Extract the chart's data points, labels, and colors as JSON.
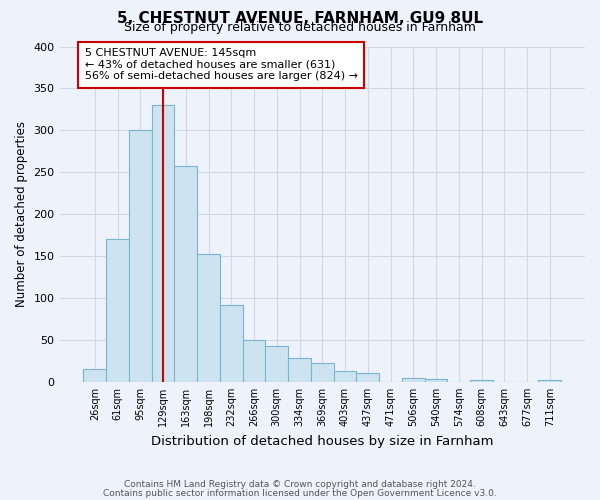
{
  "title": "5, CHESTNUT AVENUE, FARNHAM, GU9 8UL",
  "subtitle": "Size of property relative to detached houses in Farnham",
  "xlabel": "Distribution of detached houses by size in Farnham",
  "ylabel": "Number of detached properties",
  "bar_labels": [
    "26sqm",
    "61sqm",
    "95sqm",
    "129sqm",
    "163sqm",
    "198sqm",
    "232sqm",
    "266sqm",
    "300sqm",
    "334sqm",
    "369sqm",
    "403sqm",
    "437sqm",
    "471sqm",
    "506sqm",
    "540sqm",
    "574sqm",
    "608sqm",
    "643sqm",
    "677sqm",
    "711sqm"
  ],
  "bar_values": [
    15,
    170,
    300,
    330,
    258,
    152,
    92,
    50,
    43,
    29,
    23,
    13,
    11,
    0,
    5,
    3,
    0,
    2,
    0,
    0,
    2
  ],
  "bar_color": "#cde4f0",
  "bar_edge_color": "#7ab4d0",
  "vline_x": 3,
  "vline_color": "#cc0000",
  "annotation_title": "5 CHESTNUT AVENUE: 145sqm",
  "annotation_line1": "← 43% of detached houses are smaller (631)",
  "annotation_line2": "56% of semi-detached houses are larger (824) →",
  "annotation_box_color": "#ffffff",
  "annotation_box_edge": "#cc0000",
  "ylim": [
    0,
    400
  ],
  "yticks": [
    0,
    50,
    100,
    150,
    200,
    250,
    300,
    350,
    400
  ],
  "footnote1": "Contains HM Land Registry data © Crown copyright and database right 2024.",
  "footnote2": "Contains public sector information licensed under the Open Government Licence v3.0.",
  "background_color": "#eef2fa",
  "grid_color": "#d0d8e8"
}
